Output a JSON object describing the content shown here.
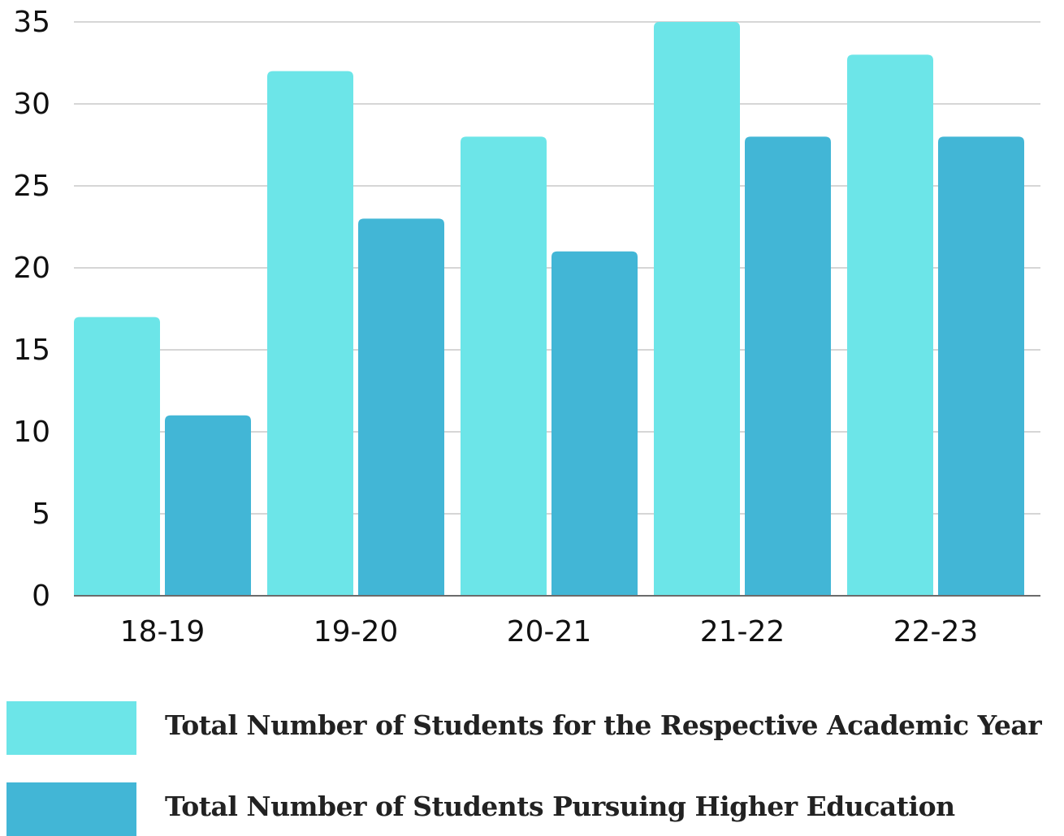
{
  "chart_data": {
    "type": "bar",
    "categories": [
      "18-19",
      "19-20",
      "20-21",
      "21-22",
      "22-23"
    ],
    "series": [
      {
        "name": "Total Number of Students for the Respective Academic Year",
        "values": [
          17,
          32,
          28,
          35,
          33
        ],
        "color": "#6ce5e8"
      },
      {
        "name": "Total Number of Students Pursuing Higher Education",
        "values": [
          11,
          23,
          21,
          28,
          28
        ],
        "color": "#42b6d6"
      }
    ],
    "y_ticks": [
      "0",
      "5",
      "10",
      "15",
      "20",
      "25",
      "30",
      "35"
    ],
    "ylim": [
      0,
      35
    ],
    "grid": true,
    "legend_position": "bottom"
  }
}
